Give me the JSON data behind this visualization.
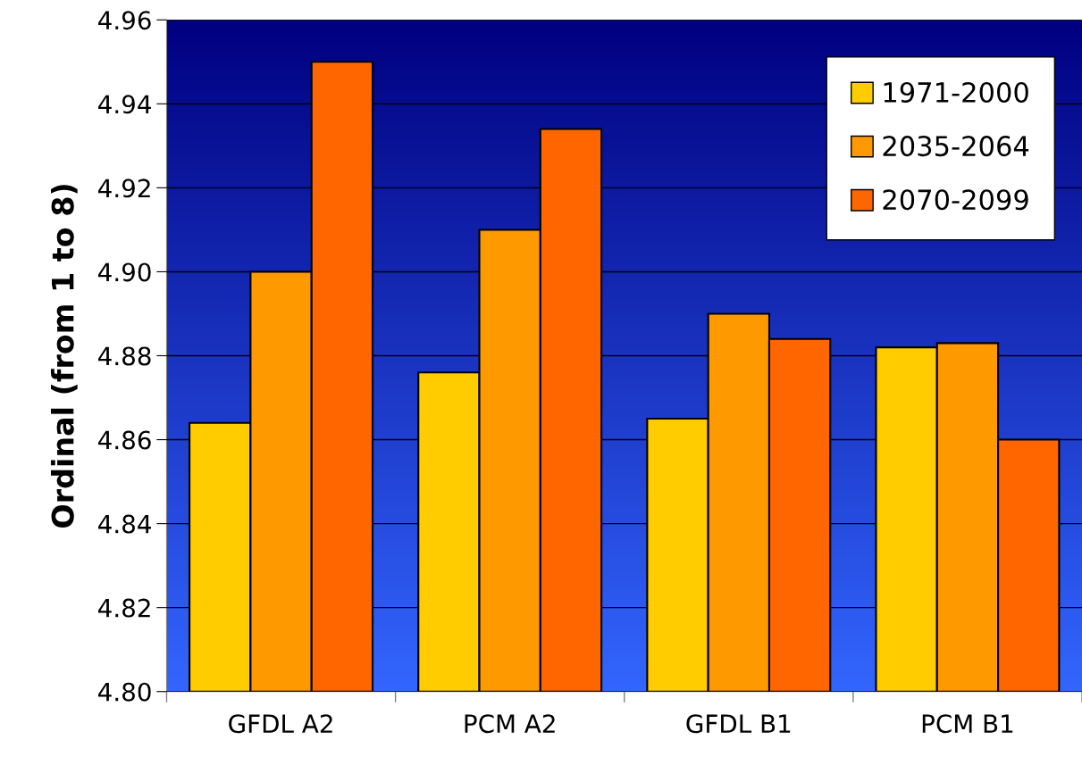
{
  "chart_data": {
    "type": "bar",
    "ylabel": "Ordinal (from 1 to 8)",
    "categories": [
      "GFDL A2",
      "PCM A2",
      "GFDL B1",
      "PCM B1"
    ],
    "series": [
      {
        "name": "1971-2000",
        "color": "#ffcc00",
        "values": [
          4.864,
          4.876,
          4.865,
          4.882
        ]
      },
      {
        "name": "2035-2064",
        "color": "#ff9900",
        "values": [
          4.9,
          4.91,
          4.89,
          4.883
        ]
      },
      {
        "name": "2070-2099",
        "color": "#ff6600",
        "values": [
          4.95,
          4.934,
          4.884,
          4.86
        ]
      }
    ],
    "ylim": [
      4.8,
      4.96
    ],
    "yticks": [
      {
        "value": 4.8,
        "label": "4.80"
      },
      {
        "value": 4.82,
        "label": "4.82"
      },
      {
        "value": 4.84,
        "label": "4.84"
      },
      {
        "value": 4.86,
        "label": "4.86"
      },
      {
        "value": 4.88,
        "label": "4.88"
      },
      {
        "value": 4.9,
        "label": "4.90"
      },
      {
        "value": 4.92,
        "label": "4.92"
      },
      {
        "value": 4.94,
        "label": "4.94"
      },
      {
        "value": 4.96,
        "label": "4.96"
      }
    ],
    "grid": "y",
    "legend": "top right"
  }
}
